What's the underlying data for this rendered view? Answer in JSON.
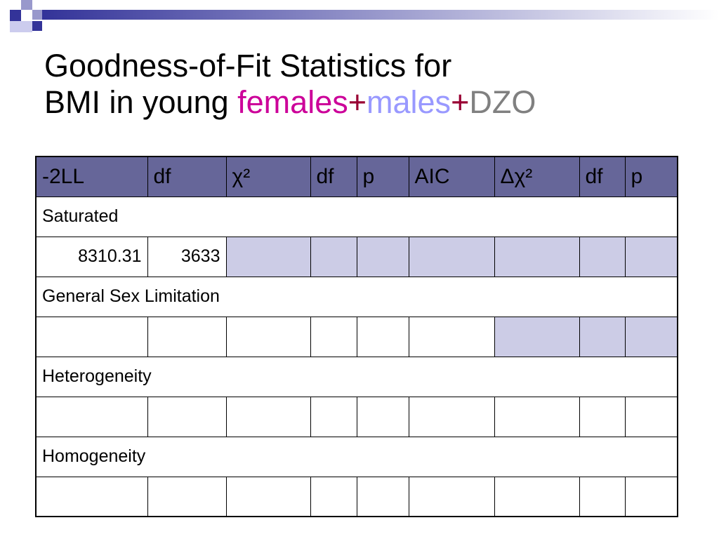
{
  "title": {
    "line1": "Goodness-of-Fit Statistics for",
    "line2": {
      "lead": "BMI in young ",
      "females": "females",
      "plus1": "+",
      "males": "males",
      "plus2": "+",
      "dzo": "DZO"
    }
  },
  "table": {
    "header": [
      "-2LL",
      "df",
      "χ²",
      "df",
      "p",
      "AIC",
      "Δχ²",
      "df",
      "p"
    ],
    "sections": [
      {
        "label": "Saturated",
        "cells": [
          "8310.31",
          "3633",
          null,
          null,
          null,
          null,
          null,
          null,
          null
        ]
      },
      {
        "label": "General Sex Limitation",
        "cells": [
          null,
          null,
          null,
          null,
          null,
          null,
          null,
          null,
          null
        ]
      },
      {
        "label": "Heterogeneity",
        "cells": [
          null,
          null,
          null,
          null,
          null,
          null,
          null,
          null,
          null
        ]
      },
      {
        "label": "Homogeneity",
        "cells": [
          null,
          null,
          null,
          null,
          null,
          null,
          null,
          null,
          null
        ]
      }
    ]
  }
}
